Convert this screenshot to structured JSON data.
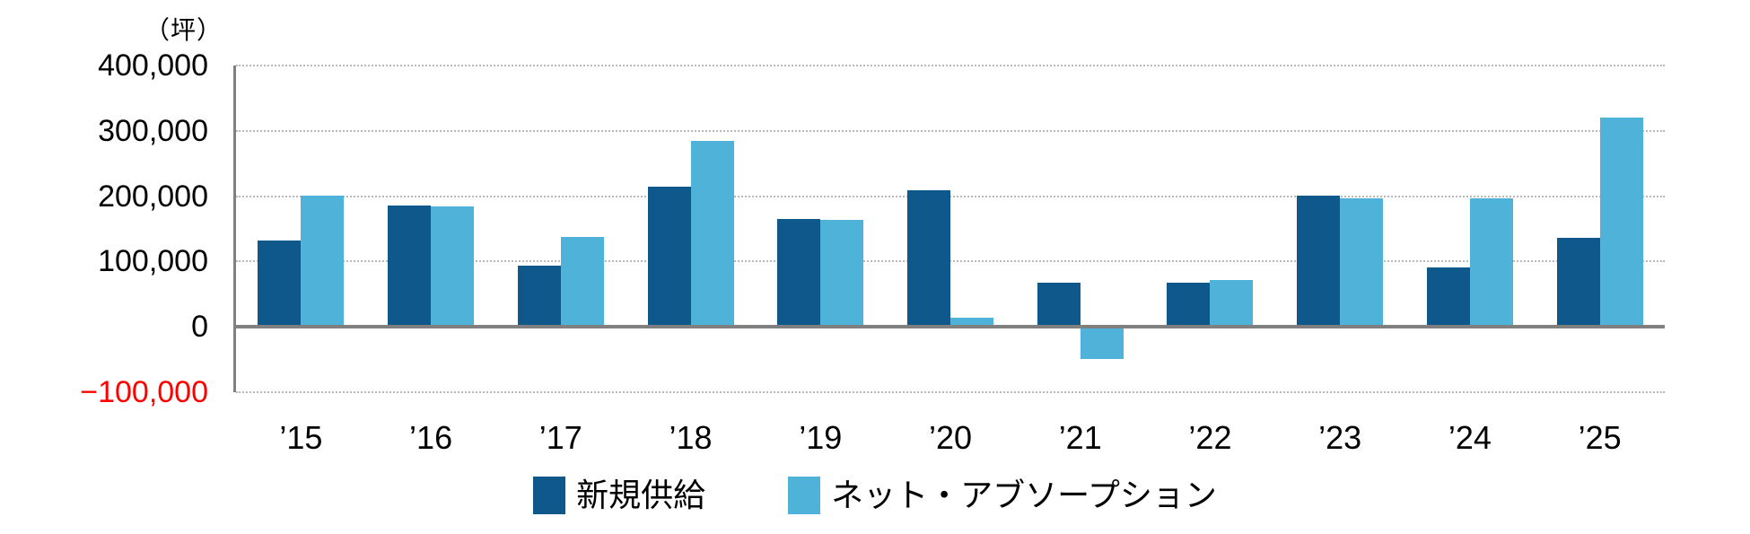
{
  "chart_data": {
    "type": "bar",
    "title": "",
    "unit_label": "（坪）",
    "categories": [
      "’15",
      "’16",
      "’17",
      "’18",
      "’19",
      "’20",
      "’21",
      "’22",
      "’23",
      "’24",
      "’25"
    ],
    "series": [
      {
        "name": "新規供給",
        "key": "new-supply",
        "color": "#0e588c",
        "values": [
          132000,
          186000,
          93000,
          215000,
          165000,
          209000,
          68000,
          68000,
          201000,
          91000,
          136000
        ]
      },
      {
        "name": "ネット・アブソープション",
        "key": "net-absorption",
        "color": "#4fb2d8",
        "values": [
          201000,
          184000,
          138000,
          285000,
          163000,
          14000,
          -50000,
          72000,
          196000,
          196000,
          320000
        ]
      }
    ],
    "y_axis": {
      "ylim": [
        -100000,
        400000
      ],
      "ticks": [
        400000,
        300000,
        200000,
        100000,
        0,
        -100000
      ],
      "tick_labels": [
        "400,000",
        "300,000",
        "200,000",
        "100,000",
        "0",
        "−100,000"
      ],
      "negative_tick_color": "#ff0000",
      "grid": "dotted-horizontal"
    },
    "axis_color": "#808080",
    "gridline_color": "#b9b9b9",
    "legend_position": "bottom"
  }
}
